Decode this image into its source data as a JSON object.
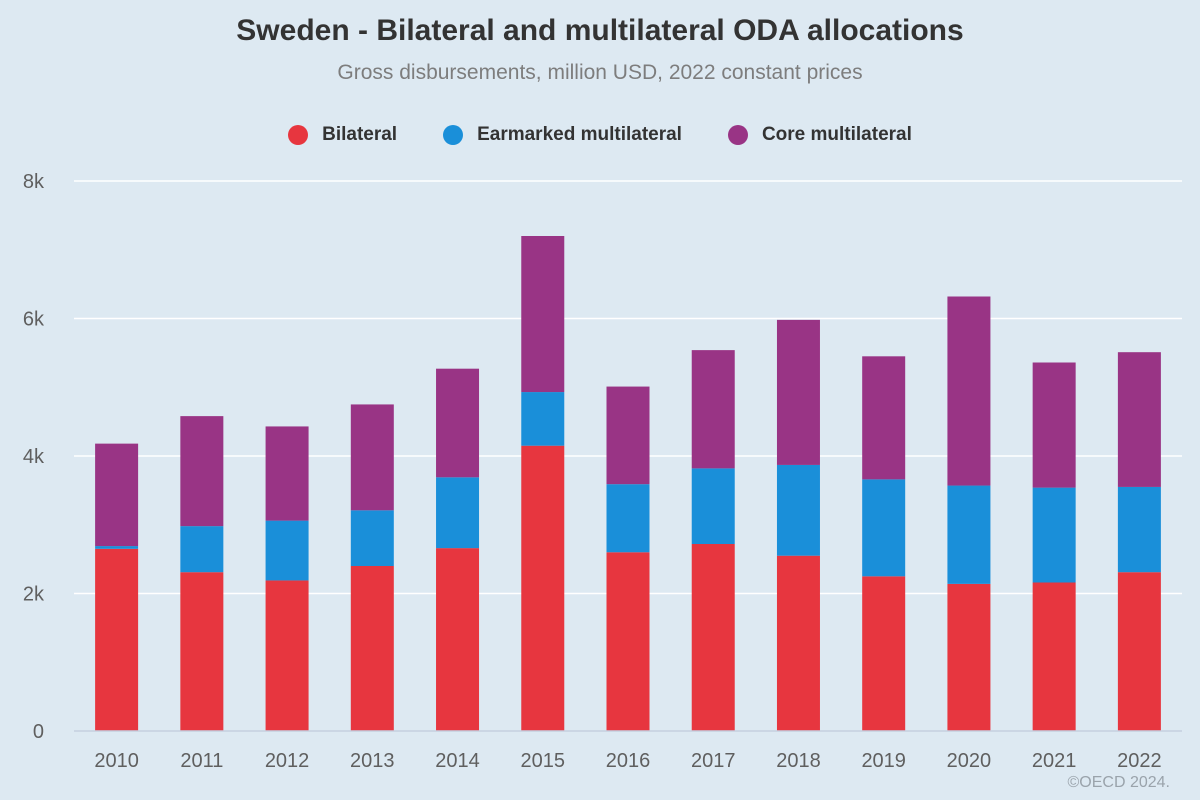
{
  "chart_data": {
    "type": "bar",
    "stacked": true,
    "title": "Sweden - Bilateral and multilateral ODA allocations",
    "subtitle": "Gross disbursements, million USD, 2022 constant prices",
    "categories": [
      "2010",
      "2011",
      "2012",
      "2013",
      "2014",
      "2015",
      "2016",
      "2017",
      "2018",
      "2019",
      "2020",
      "2021",
      "2022"
    ],
    "series": [
      {
        "name": "Bilateral",
        "color": "#e7363f",
        "values": [
          2650,
          2310,
          2190,
          2400,
          2660,
          4150,
          2600,
          2720,
          2550,
          2250,
          2140,
          2160,
          2310
        ]
      },
      {
        "name": "Earmarked multilateral",
        "color": "#1a8fd9",
        "values": [
          40,
          670,
          870,
          810,
          1030,
          780,
          990,
          1100,
          1320,
          1410,
          1430,
          1380,
          1240
        ]
      },
      {
        "name": "Core multilateral",
        "color": "#993485",
        "values": [
          1490,
          1600,
          1370,
          1540,
          1580,
          2270,
          1420,
          1720,
          2110,
          1790,
          2750,
          1820,
          1960
        ]
      }
    ],
    "ylim": [
      0,
      8000
    ],
    "yticks": [
      0,
      2000,
      4000,
      6000,
      8000
    ],
    "yticklabels": [
      "0",
      "2k",
      "4k",
      "6k",
      "8k"
    ],
    "xlabel": "",
    "ylabel": "",
    "grid": true,
    "legend_position": "top-center"
  },
  "credit": "©OECD 2024."
}
